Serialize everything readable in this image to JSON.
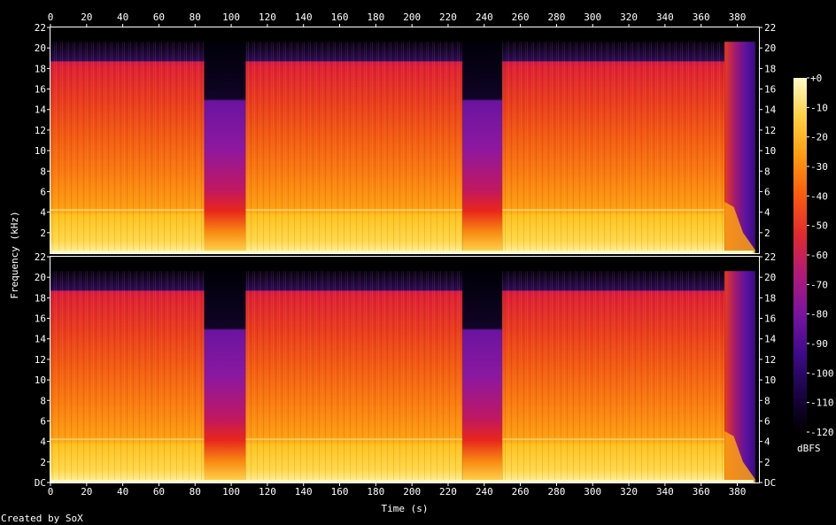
{
  "footer": "Created by SoX",
  "chart_data": {
    "type": "heatmap",
    "title": "",
    "xlabel": "Time (s)",
    "ylabel": "Frequency (kHz)",
    "xlim": [
      0,
      392
    ],
    "ylim": [
      0,
      22
    ],
    "x_ticks": [
      "0",
      "20",
      "40",
      "60",
      "80",
      "100",
      "120",
      "140",
      "160",
      "180",
      "200",
      "220",
      "240",
      "260",
      "280",
      "300",
      "320",
      "340",
      "360",
      "380"
    ],
    "y_ticks_upper": [
      "2",
      "4",
      "6",
      "8",
      "10",
      "12",
      "14",
      "16",
      "18",
      "20",
      "22"
    ],
    "y_ticks_lower": [
      "DC",
      "2",
      "4",
      "6",
      "8",
      "10",
      "12",
      "14",
      "16",
      "18",
      "20",
      "22"
    ],
    "channels": 2,
    "colorbar": {
      "label": "dBFS",
      "ticks": [
        "+0",
        "-10",
        "-20",
        "-30",
        "-40",
        "-50",
        "-60",
        "-70",
        "-80",
        "-90",
        "-100",
        "-110",
        "-120"
      ],
      "colors": [
        "#000000",
        "#1a0444",
        "#3f0a8a",
        "#7a14a0",
        "#b01a78",
        "#e02a30",
        "#f85a10",
        "#fd9a12",
        "#ffd040",
        "#fff9c8"
      ]
    },
    "segments": [
      {
        "start": 0,
        "end": 85,
        "type": "music",
        "high_cut_khz": 20
      },
      {
        "start": 85,
        "end": 108,
        "type": "quiet",
        "high_cut_khz": 16
      },
      {
        "start": 108,
        "end": 228,
        "type": "music",
        "high_cut_khz": 20
      },
      {
        "start": 228,
        "end": 250,
        "type": "quiet",
        "high_cut_khz": 16
      },
      {
        "start": 250,
        "end": 373,
        "type": "music",
        "high_cut_khz": 20
      },
      {
        "start": 373,
        "end": 390,
        "type": "fade",
        "high_cut_khz": 20
      }
    ],
    "grid": false,
    "legend": "right"
  }
}
